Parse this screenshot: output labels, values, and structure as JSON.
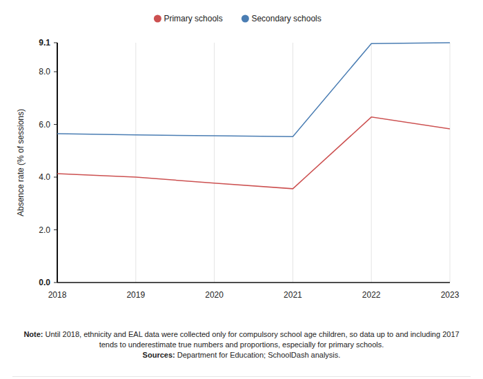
{
  "chart_data": {
    "type": "line",
    "y_label": "Absence rate (% of sessions)",
    "categories": [
      "2018",
      "2019",
      "2020",
      "2021",
      "2022",
      "2023"
    ],
    "series": [
      {
        "name": "Primary schools",
        "color": "#cc5050",
        "values": [
          4.13,
          4.0,
          3.77,
          3.56,
          6.28,
          5.83
        ]
      },
      {
        "name": "Secondary schools",
        "color": "#4a7db3",
        "values": [
          5.65,
          5.6,
          5.57,
          5.54,
          9.07,
          9.1
        ]
      }
    ],
    "ylim": [
      0,
      9.1
    ],
    "yticks": [
      {
        "value": 0,
        "label": "0.0"
      },
      {
        "value": 2,
        "label": "2.0"
      },
      {
        "value": 4,
        "label": "4.0"
      },
      {
        "value": 6,
        "label": "6.0"
      },
      {
        "value": 8,
        "label": "8.0"
      },
      {
        "value": 9.1,
        "label": "9.1"
      }
    ],
    "grid": true,
    "legend": "top",
    "note_label": "Note:",
    "note": "Until 2018, ethnicity and EAL data were collected only for compulsory school age children, so data up to and including 2017 tends to underestimate true numbers and proportions, especially for primary schools.",
    "sources_label": "Sources:",
    "sources": "Department for Education; SchoolDash analysis."
  }
}
